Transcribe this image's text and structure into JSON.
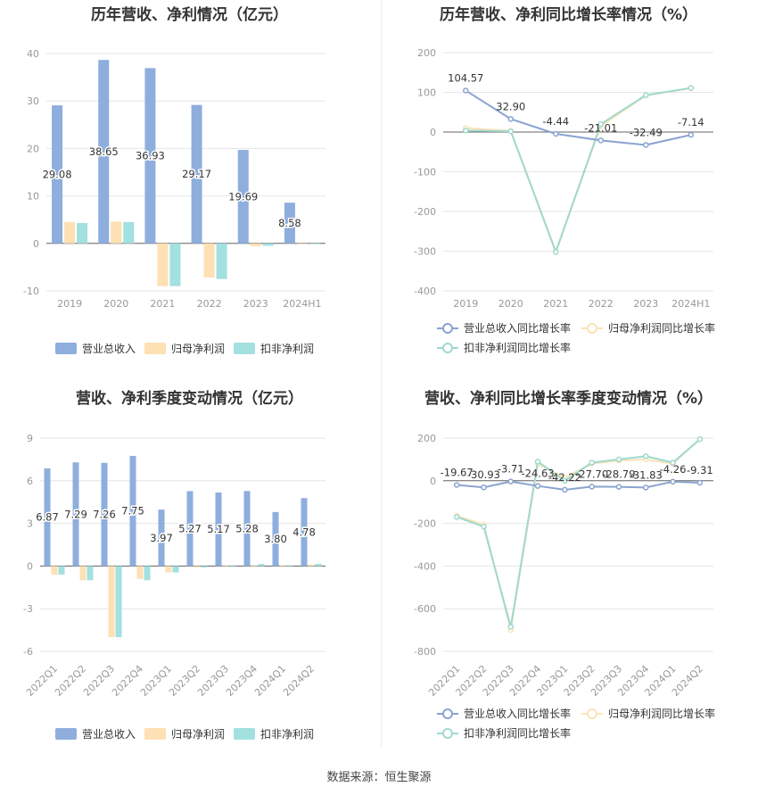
{
  "footer": "数据来源：恒生聚源",
  "colors": {
    "revenue": "#8eaedd",
    "parent_profit": "#fde0b4",
    "deducted_profit": "#a3e0e0",
    "line_revenue": "#8aa3cf",
    "line_parent": "#fde3b7",
    "line_deducted": "#9fd9cf"
  },
  "chart_data": [
    {
      "type": "bar",
      "title": "历年营收、净利情况（亿元）",
      "categories": [
        "2019",
        "2020",
        "2021",
        "2022",
        "2023",
        "2024H1"
      ],
      "ylim": [
        -10,
        40
      ],
      "yticks": [
        -10,
        0,
        10,
        20,
        30,
        40
      ],
      "series": [
        {
          "name": "营业总收入",
          "values": [
            29.08,
            38.65,
            36.93,
            29.17,
            19.69,
            8.58
          ],
          "labels": [
            "29.08",
            "38.65",
            "36.93",
            "29.17",
            "19.69",
            "8.58"
          ]
        },
        {
          "name": "归母净利润",
          "values": [
            4.5,
            4.6,
            -9.0,
            -7.2,
            -0.6,
            -0.1
          ]
        },
        {
          "name": "扣非净利润",
          "values": [
            4.3,
            4.5,
            -9.0,
            -7.5,
            -0.5,
            -0.1
          ]
        }
      ],
      "legend": "bottom",
      "grid": true
    },
    {
      "type": "line",
      "title": "历年营收、净利同比增长率情况（%）",
      "categories": [
        "2019",
        "2020",
        "2021",
        "2022",
        "2023",
        "2024H1"
      ],
      "ylim": [
        -400,
        200
      ],
      "yticks": [
        -400,
        -300,
        -200,
        -100,
        0,
        100,
        200
      ],
      "series": [
        {
          "name": "营业总收入同比增长率",
          "values": [
            104.57,
            32.9,
            -4.44,
            -21.01,
            -32.49,
            -7.14
          ],
          "labels": [
            "104.57",
            "32.90",
            "-4.44",
            "-21.01",
            "-32.49",
            "-7.14"
          ]
        },
        {
          "name": "归母净利润同比增长率",
          "values": [
            10,
            3,
            -300,
            15,
            92,
            110
          ]
        },
        {
          "name": "扣非净利润同比增长率",
          "values": [
            4,
            2,
            -302,
            20,
            93,
            111
          ]
        }
      ],
      "legend": "bottom",
      "grid": true
    },
    {
      "type": "bar",
      "title": "营收、净利季度变动情况（亿元）",
      "categories": [
        "2022Q1",
        "2022Q2",
        "2022Q3",
        "2022Q4",
        "2023Q1",
        "2023Q2",
        "2023Q3",
        "2023Q4",
        "2024Q1",
        "2024Q2"
      ],
      "ylim": [
        -6,
        9
      ],
      "yticks": [
        -6,
        -3,
        0,
        3,
        6,
        9
      ],
      "series": [
        {
          "name": "营业总收入",
          "values": [
            6.87,
            7.29,
            7.26,
            7.75,
            3.97,
            5.27,
            5.17,
            5.28,
            3.8,
            4.78
          ],
          "labels": [
            "6.87",
            "7.29",
            "7.26",
            "7.75",
            "3.97",
            "5.27",
            "5.17",
            "5.28",
            "3.80",
            "4.78"
          ]
        },
        {
          "name": "归母净利润",
          "values": [
            -0.6,
            -1.0,
            -5.0,
            -0.9,
            -0.45,
            -0.1,
            -0.05,
            -0.05,
            0.05,
            0.1
          ]
        },
        {
          "name": "扣非净利润",
          "values": [
            -0.6,
            -1.0,
            -5.0,
            -1.0,
            -0.45,
            -0.1,
            -0.05,
            0.15,
            0.05,
            0.15
          ]
        }
      ],
      "legend": "bottom",
      "grid": true
    },
    {
      "type": "line",
      "title": "营收、净利同比增长率季度变动情况（%）",
      "categories": [
        "2022Q1",
        "2022Q2",
        "2022Q3",
        "2022Q4",
        "2023Q1",
        "2023Q2",
        "2023Q3",
        "2023Q4",
        "2024Q1",
        "2024Q2"
      ],
      "ylim": [
        -800,
        200
      ],
      "yticks": [
        -800,
        -600,
        -400,
        -200,
        0,
        200
      ],
      "series": [
        {
          "name": "营业总收入同比增长率",
          "values": [
            -19.67,
            -30.93,
            -3.71,
            -24.63,
            -42.22,
            -27.7,
            -28.79,
            -31.83,
            -4.26,
            -9.31
          ],
          "labels": [
            "-19.67",
            "-30.93",
            "-3.71",
            "-24.63",
            "-42.22",
            "-27.70",
            "-28.79",
            "-31.83",
            "-4.26",
            "-9.31"
          ]
        },
        {
          "name": "归母净利润同比增长率",
          "values": [
            -165,
            -205,
            -700,
            80,
            15,
            80,
            95,
            100,
            80,
            195
          ]
        },
        {
          "name": "扣非净利润同比增长率",
          "values": [
            -170,
            -215,
            -685,
            90,
            0,
            85,
            100,
            115,
            85,
            195
          ]
        }
      ],
      "legend": "bottom",
      "grid": true
    }
  ]
}
